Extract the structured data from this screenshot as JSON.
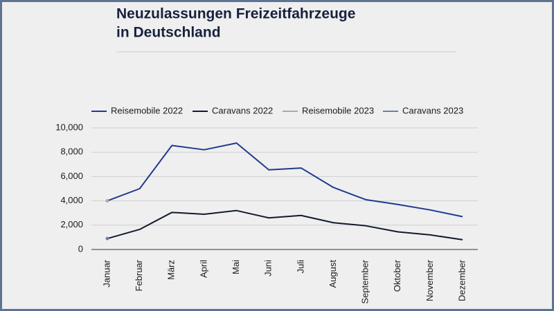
{
  "chart_data": {
    "type": "line",
    "title": [
      "Neuzulassungen Freizeitfahrzeuge",
      "in Deutschland"
    ],
    "categories": [
      "Januar",
      "Februar",
      "März",
      "April",
      "Mai",
      "Juni",
      "Juli",
      "August",
      "September",
      "Oktober",
      "November",
      "Dezember"
    ],
    "series": [
      {
        "name": "Reisemobile 2022",
        "color": "#1f3a8f",
        "values": [
          4000,
          5000,
          8550,
          8200,
          8750,
          6550,
          6700,
          5100,
          4100,
          3700,
          3250,
          2700
        ]
      },
      {
        "name": "Caravans 2022",
        "color": "#111a2e",
        "values": [
          900,
          1650,
          3050,
          2900,
          3200,
          2600,
          2800,
          2200,
          1950,
          1450,
          1200,
          800
        ]
      },
      {
        "name": "Reisemobile 2023",
        "color": "#a9a9a9",
        "values": [
          4000,
          null,
          null,
          null,
          null,
          null,
          null,
          null,
          null,
          null,
          null,
          null
        ]
      },
      {
        "name": "Caravans 2023",
        "color": "#6b7ea6",
        "values": [
          900,
          null,
          null,
          null,
          null,
          null,
          null,
          null,
          null,
          null,
          null,
          null
        ]
      }
    ],
    "ylim": [
      0,
      10000
    ],
    "yticks": [
      0,
      {
        "value": 2000,
        "label": "2,000"
      },
      {
        "value": 4000,
        "label": "4,000"
      },
      {
        "value": 6000,
        "label": "6,000"
      },
      {
        "value": 8000,
        "label": "8,000"
      },
      {
        "value": 10000,
        "label": "10,000"
      }
    ],
    "grid": true,
    "legend": "top"
  }
}
